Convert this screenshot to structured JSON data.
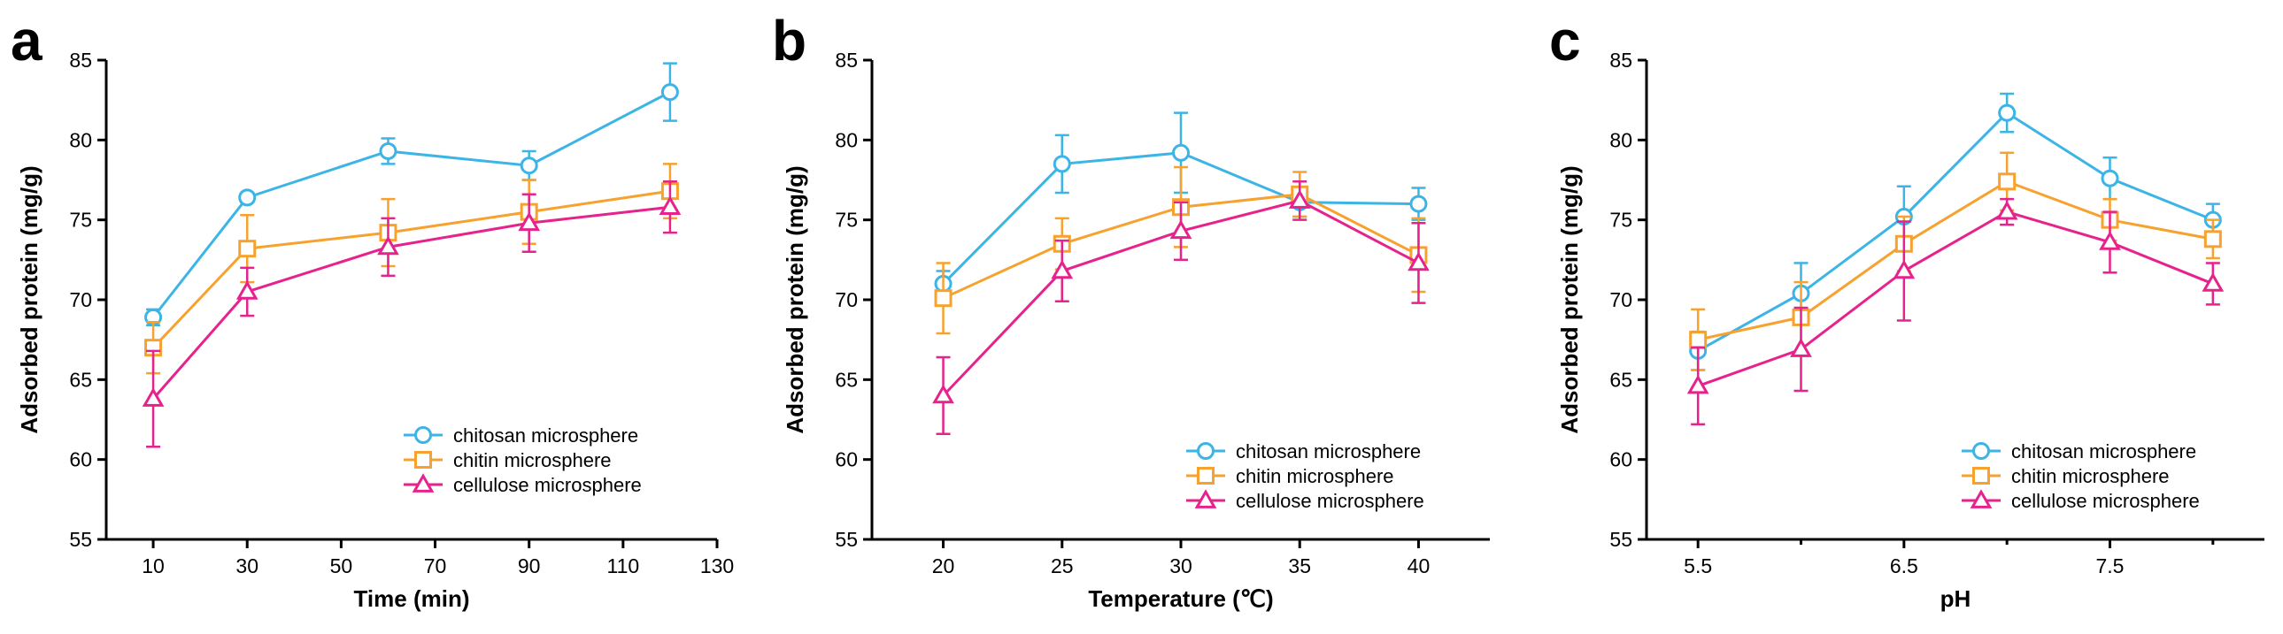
{
  "colors": {
    "chitosan": "#3cb4e6",
    "chitin": "#f7a12e",
    "cellulose": "#e6228c",
    "axis": "#000000"
  },
  "marker_shapes": {
    "chitosan": "circle",
    "chitin": "square",
    "cellulose": "triangle"
  },
  "chart_data": [
    {
      "panel": "a",
      "type": "line",
      "xlabel": "Time (min)",
      "ylabel": "Adsorbed protein (mg/g)",
      "xlim": [
        0,
        130
      ],
      "ylim": [
        55,
        85
      ],
      "xticks": [
        10,
        30,
        50,
        70,
        90,
        110,
        130
      ],
      "xtick_labels": [
        "10",
        "30",
        "50",
        "70",
        "90",
        "110",
        "130"
      ],
      "yticks": [
        55,
        60,
        65,
        70,
        75,
        80,
        85
      ],
      "ytick_labels": [
        "55",
        "60",
        "65",
        "70",
        "75",
        "80",
        "85"
      ],
      "x": [
        10,
        30,
        60,
        90,
        120
      ],
      "legend_position": "bottom-right",
      "series": [
        {
          "key": "chitosan",
          "name": "chitosan microsphere",
          "values": [
            68.9,
            76.4,
            79.3,
            78.4,
            83.0
          ],
          "errors": [
            0.5,
            0.3,
            0.8,
            0.9,
            1.8
          ]
        },
        {
          "key": "chitin",
          "name": "chitin microsphere",
          "values": [
            67.0,
            73.2,
            74.2,
            75.5,
            76.8
          ],
          "errors": [
            1.6,
            2.1,
            2.1,
            2.0,
            1.7
          ]
        },
        {
          "key": "cellulose",
          "name": "cellulose microsphere",
          "values": [
            63.8,
            70.5,
            73.3,
            74.8,
            75.8
          ],
          "errors": [
            3.0,
            1.5,
            1.8,
            1.8,
            1.6
          ]
        }
      ]
    },
    {
      "panel": "b",
      "type": "line",
      "xlabel": "Temperature (℃)",
      "ylabel": "Adsorbed protein (mg/g)",
      "xlim": [
        17,
        43
      ],
      "ylim": [
        55,
        85
      ],
      "xticks": [
        20,
        25,
        30,
        35,
        40
      ],
      "xtick_labels": [
        "20",
        "25",
        "30",
        "35",
        "40"
      ],
      "yticks": [
        55,
        60,
        65,
        70,
        75,
        80,
        85
      ],
      "ytick_labels": [
        "55",
        "60",
        "65",
        "70",
        "75",
        "80",
        "85"
      ],
      "x": [
        20,
        25,
        30,
        35,
        40
      ],
      "legend_position": "bottom-right",
      "series": [
        {
          "key": "chitosan",
          "name": "chitosan microsphere",
          "values": [
            71.0,
            78.5,
            79.2,
            76.1,
            76.0
          ],
          "errors": [
            0.8,
            1.8,
            2.5,
            0.9,
            1.0
          ]
        },
        {
          "key": "chitin",
          "name": "chitin microsphere",
          "values": [
            70.1,
            73.5,
            75.8,
            76.6,
            72.8
          ],
          "errors": [
            2.2,
            1.6,
            2.5,
            1.4,
            2.3
          ]
        },
        {
          "key": "cellulose",
          "name": "cellulose microsphere",
          "values": [
            64.0,
            71.8,
            74.3,
            76.2,
            72.3
          ],
          "errors": [
            2.4,
            1.9,
            1.8,
            1.2,
            2.5
          ]
        }
      ]
    },
    {
      "panel": "c",
      "type": "line",
      "xlabel": "pH",
      "ylabel": "Adsorbed protein (mg/g)",
      "xlim": [
        5.25,
        8.25
      ],
      "ylim": [
        55,
        85
      ],
      "xticks": [
        5.5,
        6.5,
        7.5
      ],
      "xtick_labels": [
        "5.5",
        "6.5",
        "7.5"
      ],
      "minor_xticks": [
        6.0,
        7.0,
        8.0
      ],
      "yticks": [
        55,
        60,
        65,
        70,
        75,
        80,
        85
      ],
      "ytick_labels": [
        "55",
        "60",
        "65",
        "70",
        "75",
        "80",
        "85"
      ],
      "x": [
        5.5,
        6.0,
        6.5,
        7.0,
        7.5,
        8.0
      ],
      "legend_position": "bottom-right",
      "series": [
        {
          "key": "chitosan",
          "name": "chitosan microsphere",
          "values": [
            66.8,
            70.4,
            75.2,
            81.7,
            77.6,
            75.0
          ],
          "errors": [
            1.2,
            1.9,
            1.9,
            1.2,
            1.3,
            1.0
          ]
        },
        {
          "key": "chitin",
          "name": "chitin microsphere",
          "values": [
            67.5,
            68.9,
            73.5,
            77.4,
            75.0,
            73.8
          ],
          "errors": [
            1.9,
            2.2,
            1.7,
            1.8,
            1.3,
            1.2
          ]
        },
        {
          "key": "cellulose",
          "name": "cellulose microsphere",
          "values": [
            64.6,
            66.9,
            71.8,
            75.5,
            73.6,
            71.0
          ],
          "errors": [
            2.4,
            2.6,
            3.1,
            0.8,
            1.9,
            1.3
          ]
        }
      ]
    }
  ]
}
